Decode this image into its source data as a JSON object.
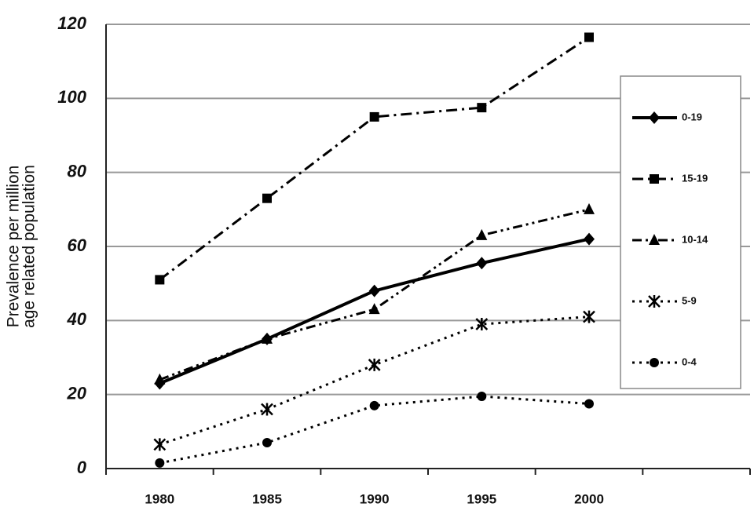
{
  "chart_data": {
    "type": "line",
    "y_label": [
      "Prevalence per million",
      "age related population"
    ],
    "categories": [
      "1980",
      "1985",
      "1990",
      "1995",
      "2000",
      null
    ],
    "series": [
      {
        "name": "0-19",
        "color": "#000000",
        "line_style": "solid",
        "marker": "diamond",
        "values": [
          23,
          35,
          48,
          55.5,
          62,
          null
        ]
      },
      {
        "name": "15-19",
        "color": "#000000",
        "line_style": "dashdot",
        "marker": "square",
        "values": [
          51,
          73,
          95,
          97.5,
          116.5,
          null
        ]
      },
      {
        "name": "10-14",
        "color": "#000000",
        "line_style": "dashdotdot",
        "marker": "triangle",
        "values": [
          24,
          35,
          43,
          63,
          70,
          null
        ]
      },
      {
        "name": "5-9",
        "color": "#000000",
        "line_style": "dotted",
        "marker": "asterisk",
        "values": [
          6.5,
          16,
          28,
          39,
          41,
          null
        ]
      },
      {
        "name": "0-4",
        "color": "#000000",
        "line_style": "dotted",
        "marker": "circle",
        "values": [
          1.5,
          7,
          17,
          19.5,
          17.5,
          null
        ]
      }
    ],
    "ylim": [
      0,
      120
    ],
    "yticks": [
      0,
      20,
      40,
      60,
      80,
      100,
      120
    ],
    "grid": true,
    "legend": "right"
  }
}
